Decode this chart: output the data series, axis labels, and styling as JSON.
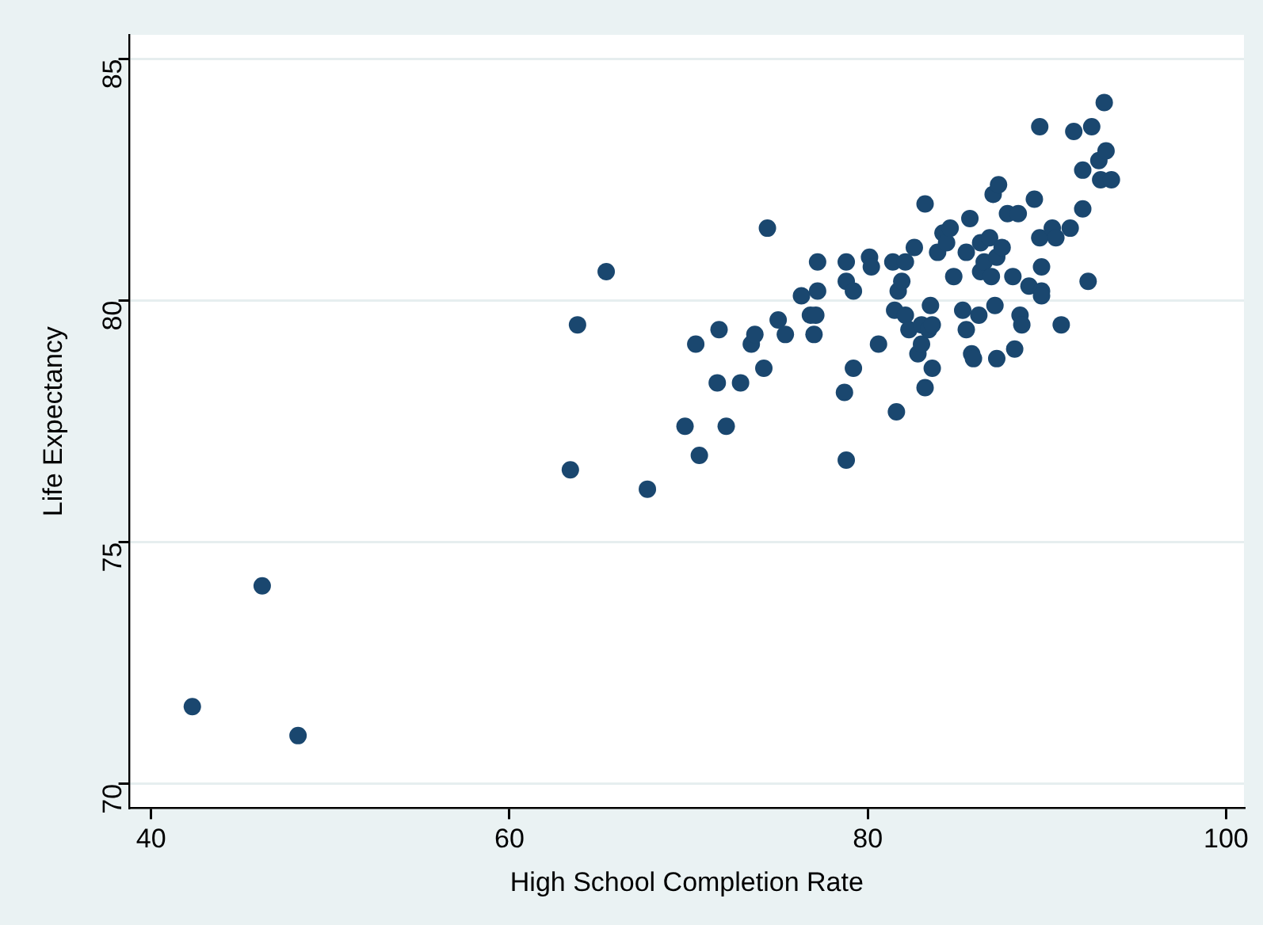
{
  "chart_data": {
    "type": "scatter",
    "xlabel": "High School Completion Rate",
    "ylabel": "Life Expectancy",
    "xlim": [
      38.8,
      101
    ],
    "xticks": [
      40,
      60,
      80,
      100
    ],
    "ylim": [
      69.5,
      85.5
    ],
    "yticks": [
      70,
      75,
      80,
      85
    ],
    "grid": "y",
    "legend": false,
    "marker": "circle",
    "series": [
      {
        "color": "#1a476f",
        "x": [
          42.3,
          46.2,
          48.2,
          63.4,
          63.8,
          65.4,
          67.7,
          69.8,
          70.4,
          70.6,
          71.6,
          71.7,
          72.1,
          72.9,
          73.5,
          73.7,
          74.2,
          74.4,
          75.0,
          75.4,
          76.3,
          76.8,
          77.0,
          77.1,
          77.2,
          77.2,
          78.7,
          78.8,
          78.8,
          78.8,
          79.2,
          79.2,
          80.1,
          80.2,
          80.6,
          81.4,
          81.5,
          81.6,
          81.7,
          81.9,
          82.1,
          82.1,
          82.3,
          82.6,
          82.8,
          83.0,
          83.0,
          83.2,
          83.2,
          83.4,
          83.5,
          83.6,
          83.6,
          83.9,
          84.2,
          84.4,
          84.6,
          84.8,
          85.3,
          85.5,
          85.5,
          85.7,
          85.8,
          85.9,
          86.2,
          86.3,
          86.3,
          86.5,
          86.8,
          86.9,
          87.0,
          87.1,
          87.2,
          87.2,
          87.3,
          87.5,
          87.8,
          88.1,
          88.2,
          88.4,
          88.5,
          88.6,
          89.0,
          89.3,
          89.6,
          89.6,
          89.7,
          89.7,
          89.7,
          90.3,
          90.5,
          90.8,
          91.3,
          91.5,
          92.0,
          92.0,
          92.3,
          92.5,
          92.9,
          93.0,
          93.2,
          93.3,
          93.6
        ],
        "values": [
          71.6,
          74.1,
          71.0,
          76.5,
          79.5,
          80.6,
          76.1,
          77.4,
          79.1,
          76.8,
          78.3,
          79.4,
          77.4,
          78.3,
          79.1,
          79.3,
          78.6,
          81.5,
          79.6,
          79.3,
          80.1,
          79.7,
          79.3,
          79.7,
          80.8,
          80.2,
          78.1,
          76.7,
          80.8,
          80.4,
          78.6,
          80.2,
          80.9,
          80.7,
          79.1,
          80.8,
          79.8,
          77.7,
          80.2,
          80.4,
          80.8,
          79.7,
          79.4,
          81.1,
          78.9,
          79.5,
          79.1,
          82.0,
          78.2,
          79.4,
          79.9,
          78.6,
          79.5,
          81.0,
          81.4,
          81.2,
          81.5,
          80.5,
          79.8,
          79.4,
          81.0,
          81.7,
          78.9,
          78.8,
          79.7,
          80.6,
          81.2,
          80.8,
          81.3,
          80.5,
          82.2,
          79.9,
          80.9,
          78.8,
          82.4,
          81.1,
          81.8,
          80.5,
          79.0,
          81.8,
          79.7,
          79.5,
          80.3,
          82.1,
          83.6,
          81.3,
          80.7,
          80.2,
          80.1,
          81.5,
          81.3,
          79.5,
          81.5,
          83.5,
          82.7,
          81.9,
          80.4,
          83.6,
          82.9,
          82.5,
          84.1,
          83.1,
          82.5
        ]
      }
    ]
  }
}
